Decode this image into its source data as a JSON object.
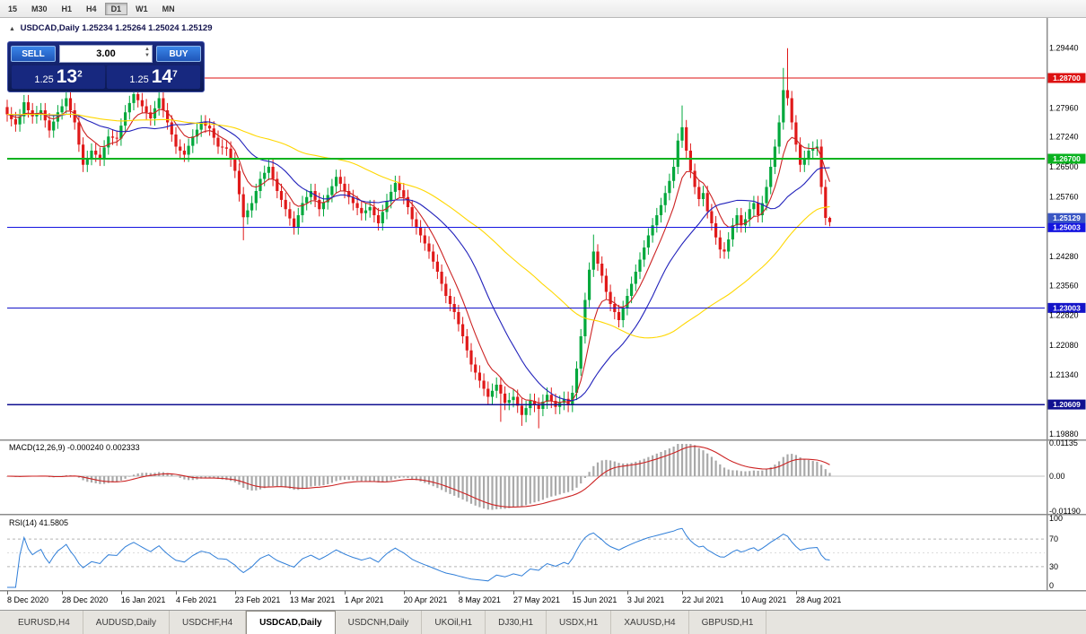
{
  "toolbar": {
    "timeframes": [
      {
        "label": "15"
      },
      {
        "label": "M30"
      },
      {
        "label": "H1"
      },
      {
        "label": "H4"
      },
      {
        "label": "D1"
      },
      {
        "label": "W1"
      },
      {
        "label": "MN"
      }
    ]
  },
  "chart": {
    "title_symbol": "USDCAD,Daily",
    "title_ohlc": "1.25234 1.25264 1.25024 1.25129"
  },
  "icons": {
    "collapse": "▲",
    "spin_up": "▲",
    "spin_down": "▼"
  },
  "trade_panel": {
    "sell_label": "SELL",
    "buy_label": "BUY",
    "volume": "3.00",
    "sell_price_small": "1.25",
    "sell_price_big": "13",
    "sell_price_sup": "2",
    "buy_price_small": "1.25",
    "buy_price_big": "14",
    "buy_price_sup": "7"
  },
  "indicators": {
    "macd_label": "MACD(12,26,9) -0.000240 0.002333",
    "rsi_label": "RSI(14) 41.5805",
    "macd_axis": [
      {
        "v": 0.01135,
        "t": "0.01135"
      },
      {
        "v": 0,
        "t": "0.00"
      },
      {
        "v": -0.0119,
        "t": "-0.01190"
      }
    ],
    "rsi_axis": [
      {
        "v": 100,
        "t": "100"
      },
      {
        "v": 70,
        "t": "70"
      },
      {
        "v": 30,
        "t": "30"
      },
      {
        "v": 0,
        "t": "0"
      }
    ]
  },
  "price_axis": {
    "labels": [
      "1.29440",
      "1.27960",
      "1.27240",
      "1.26500",
      "1.25760",
      "1.24280",
      "1.23560",
      "1.22820",
      "1.22080",
      "1.21340",
      "1.19880"
    ]
  },
  "dates": {
    "labels": [
      "8 Dec 2020",
      "28 Dec 2020",
      "16 Jan 2021",
      "4 Feb 2021",
      "23 Feb 2021",
      "13 Mar 2021",
      "1 Apr 2021",
      "20 Apr 2021",
      "8 May 2021",
      "27 May 2021",
      "15 Jun 2021",
      "3 Jul 2021",
      "22 Jul 2021",
      "10 Aug 2021",
      "28 Aug 2021"
    ],
    "indices": [
      0,
      13,
      27,
      40,
      54,
      67,
      80,
      94,
      107,
      120,
      134,
      147,
      160,
      174,
      187
    ]
  },
  "tabs": [
    {
      "label": "EURUSD,H4"
    },
    {
      "label": "AUDUSD,Daily"
    },
    {
      "label": "USDCHF,H4"
    },
    {
      "label": "USDCAD,Daily"
    },
    {
      "label": "USDCNH,Daily"
    },
    {
      "label": "UKOil,H1"
    },
    {
      "label": "DJ30,H1"
    },
    {
      "label": "USDX,H1"
    },
    {
      "label": "XAUUSD,H4"
    },
    {
      "label": "GBPUSD,H1"
    }
  ],
  "chart_data": {
    "type": "candlestick",
    "symbol": "USDCAD",
    "timeframe": "Daily",
    "current_ohlc": {
      "open": 1.25234,
      "high": 1.25264,
      "low": 1.25024,
      "close": 1.25129
    },
    "first_open": 1.2798,
    "closes": [
      1.278,
      1.2768,
      1.2755,
      1.2775,
      1.281,
      1.279,
      1.2775,
      1.2783,
      1.279,
      1.2765,
      1.274,
      1.2762,
      1.2785,
      1.28,
      1.282,
      1.279,
      1.276,
      1.2705,
      1.2655,
      1.2672,
      1.269,
      1.268,
      1.267,
      1.2698,
      1.2725,
      1.2722,
      1.272,
      1.2752,
      1.2785,
      1.2808,
      1.283,
      1.2815,
      1.28,
      1.2785,
      1.277,
      1.2795,
      1.282,
      1.279,
      1.276,
      1.273,
      1.27,
      1.269,
      1.268,
      1.2702,
      1.2725,
      1.2742,
      1.276,
      1.2752,
      1.2745,
      1.2722,
      1.27,
      1.2698,
      1.2695,
      1.2668,
      1.264,
      1.2582,
      1.2525,
      1.2542,
      1.256,
      1.259,
      1.262,
      1.2635,
      1.265,
      1.262,
      1.259,
      1.2568,
      1.2545,
      1.2522,
      1.25,
      1.253,
      1.256,
      1.2575,
      1.259,
      1.2568,
      1.2545,
      1.2562,
      1.258,
      1.2602,
      1.2625,
      1.2608,
      1.259,
      1.2575,
      1.256,
      1.2548,
      1.2535,
      1.2542,
      1.255,
      1.253,
      1.251,
      1.2538,
      1.2565,
      1.2588,
      1.261,
      1.2592,
      1.2575,
      1.255,
      1.252,
      1.25,
      1.248,
      1.246,
      1.244,
      1.2415,
      1.239,
      1.236,
      1.233,
      1.231,
      1.229,
      1.226,
      1.223,
      1.2195,
      1.216,
      1.214,
      1.212,
      1.21,
      1.208,
      1.2095,
      1.211,
      1.2088,
      1.2065,
      1.2072,
      1.208,
      1.2058,
      1.2035,
      1.2052,
      1.207,
      1.206,
      1.205,
      1.2068,
      1.2085,
      1.207,
      1.2055,
      1.2065,
      1.2075,
      1.206,
      1.209,
      1.215,
      1.223,
      1.232,
      1.2395,
      1.244,
      1.241,
      1.238,
      1.234,
      1.231,
      1.229,
      1.227,
      1.23,
      1.233,
      1.236,
      1.239,
      1.242,
      1.245,
      1.248,
      1.2505,
      1.253,
      1.2555,
      1.2585,
      1.2615,
      1.265,
      1.2715,
      1.2748,
      1.269,
      1.264,
      1.26,
      1.257,
      1.2585,
      1.254,
      1.251,
      1.2475,
      1.2445,
      1.244,
      1.247,
      1.2505,
      1.253,
      1.2505,
      1.252,
      1.2545,
      1.256,
      1.253,
      1.256,
      1.26,
      1.265,
      1.27,
      1.276,
      1.284,
      1.282,
      1.276,
      1.2705,
      1.2655,
      1.2672,
      1.269,
      1.2695,
      1.27,
      1.26,
      1.25234,
      1.25129
    ],
    "special_wicks": {
      "56": {
        "low": 1.2468
      },
      "117": {
        "low": 1.2018
      },
      "122": {
        "low": 1.2008
      },
      "126": {
        "low": 1.2002
      },
      "139": {
        "high": 1.2482
      },
      "160": {
        "high": 1.2802
      },
      "169": {
        "low": 1.2423
      },
      "184": {
        "high": 1.2895
      },
      "185": {
        "high": 1.2944
      },
      "195": {
        "high": 1.25264,
        "low": 1.25024
      }
    },
    "moving_averages": [
      {
        "period": 8,
        "type": "ema",
        "color": "#cc2222"
      },
      {
        "period": 21,
        "type": "sma",
        "color": "#2222bb"
      },
      {
        "period": 55,
        "type": "sma",
        "color": "#ffd700"
      }
    ],
    "levels": [
      {
        "price": 1.287,
        "label": "1.28700",
        "color": "#dd1111",
        "width": 1.4
      },
      {
        "price": 1.267,
        "label": "1.26700",
        "color": "#08b21f",
        "width": 1.6
      },
      {
        "price": 1.25003,
        "label": "1.25003",
        "color": "#1414e0",
        "width": 1.2
      },
      {
        "price": 1.23003,
        "label": "1.23003",
        "color": "#1414c8",
        "width": 1.2
      },
      {
        "price": 1.20609,
        "label": "1.20609",
        "color": "#101090",
        "width": 1.4
      }
    ],
    "current_tag": {
      "price": 1.25129,
      "label": "1.25129",
      "color": "#3a56c4"
    },
    "macd": {
      "fast": 12,
      "slow": 26,
      "signal": 9,
      "current_main": -0.00024,
      "current_signal": 0.002333
    },
    "rsi": {
      "period": 14,
      "current": 41.5805,
      "levels": [
        70,
        30
      ]
    },
    "colors": {
      "up": "#00a83c",
      "down": "#e01919",
      "macd_hist": "#a9a9a9",
      "macd_signal": "#cc2222",
      "rsi": "#2f7ed8"
    }
  }
}
